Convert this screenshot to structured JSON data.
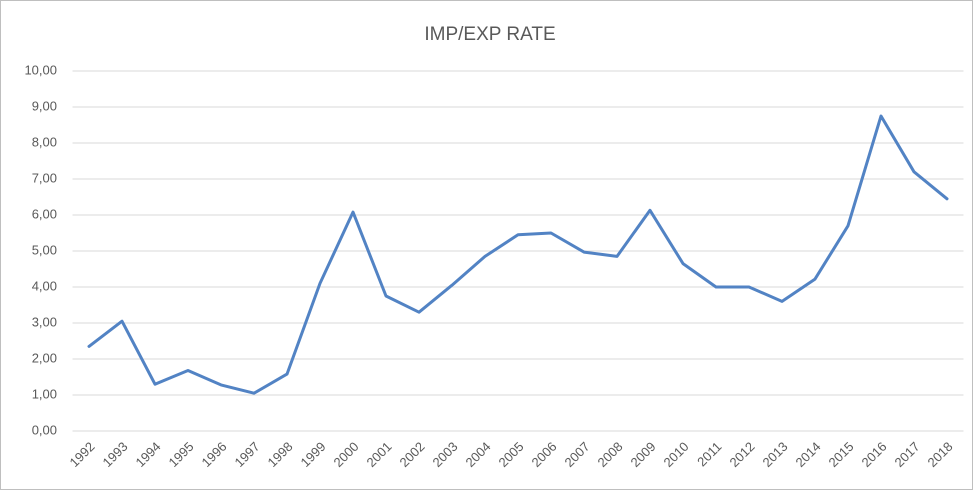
{
  "chart_data": {
    "type": "line",
    "title": "IMP/EXP RATE",
    "categories": [
      "1992",
      "1993",
      "1994",
      "1995",
      "1996",
      "1997",
      "1998",
      "1999",
      "2000",
      "2001",
      "2002",
      "2003",
      "2004",
      "2005",
      "2006",
      "2007",
      "2008",
      "2009",
      "2010",
      "2011",
      "2012",
      "2013",
      "2014",
      "2015",
      "2016",
      "2017",
      "2018"
    ],
    "series": [
      {
        "name": "IMP/EXP RATE",
        "color": "#5283c4",
        "values": [
          2.35,
          3.05,
          1.3,
          1.68,
          1.28,
          1.05,
          1.58,
          4.1,
          6.08,
          3.75,
          3.3,
          4.05,
          4.85,
          5.45,
          5.5,
          4.97,
          4.85,
          6.13,
          4.65,
          4.0,
          4.0,
          3.6,
          4.22,
          5.7,
          8.75,
          7.2,
          6.45
        ]
      }
    ],
    "ylim": [
      0,
      10
    ],
    "yticks": [
      {
        "value": 0,
        "label": "0,00"
      },
      {
        "value": 1,
        "label": "1,00"
      },
      {
        "value": 2,
        "label": "2,00"
      },
      {
        "value": 3,
        "label": "3,00"
      },
      {
        "value": 4,
        "label": "4,00"
      },
      {
        "value": 5,
        "label": "5,00"
      },
      {
        "value": 6,
        "label": "6,00"
      },
      {
        "value": 7,
        "label": "7,00"
      },
      {
        "value": 8,
        "label": "8,00"
      },
      {
        "value": 9,
        "label": "9,00"
      },
      {
        "value": 10,
        "label": "10,00"
      }
    ],
    "grid": true
  }
}
